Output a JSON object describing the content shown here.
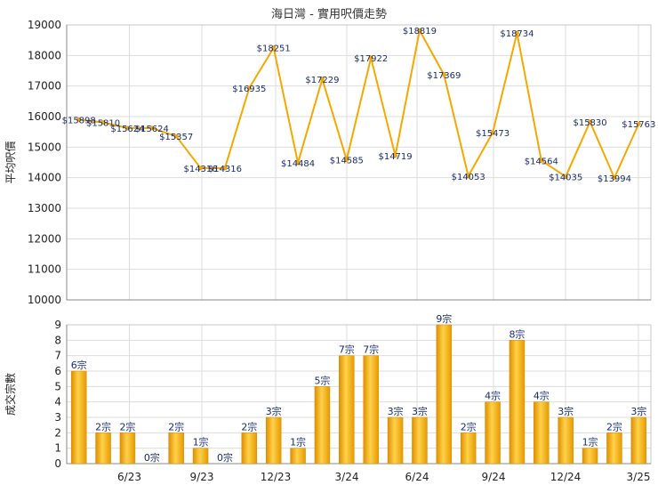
{
  "chart_data": [
    {
      "type": "line",
      "title": "海日灣 - 實用呎價走勢",
      "ylabel": "平均呎價",
      "ylim": [
        10000,
        19000
      ],
      "y_ticks": [
        10000,
        11000,
        12000,
        13000,
        14000,
        15000,
        16000,
        17000,
        18000,
        19000
      ],
      "x_tick_labels": [
        "6/23",
        "9/23",
        "12/23",
        "3/24",
        "6/24",
        "9/24",
        "12/24",
        "3/25"
      ],
      "grid": true,
      "color": "#f5a800",
      "series": [
        {
          "values": [
            15898,
            15810,
            15624,
            15624,
            15357,
            14316,
            14316,
            16935,
            18251,
            14484,
            17229,
            14585,
            17922,
            14719,
            18819,
            17369,
            14053,
            15473,
            18734,
            14564,
            14035,
            15830,
            13994,
            15763
          ],
          "labels": [
            "$15898",
            "$15810",
            "$15624",
            "$15624",
            "$15357",
            "$14316",
            "$14316",
            "$16935",
            "$18251",
            "$14484",
            "$17229",
            "$14585",
            "$17922",
            "$14719",
            "$18819",
            "$17369",
            "$14053",
            "$15473",
            "$18734",
            "$14564",
            "$14035",
            "$15830",
            "$13994",
            "$15763"
          ]
        }
      ]
    },
    {
      "type": "bar",
      "ylabel": "成交宗數",
      "ylim": [
        0,
        9
      ],
      "y_ticks": [
        0,
        1,
        2,
        3,
        4,
        5,
        6,
        7,
        8,
        9
      ],
      "x_tick_labels": [
        "6/23",
        "9/23",
        "12/23",
        "3/24",
        "6/24",
        "9/24",
        "12/24",
        "3/25"
      ],
      "grid": true,
      "color": "#f5b21e",
      "values": [
        6,
        2,
        2,
        0,
        2,
        1,
        0,
        2,
        3,
        1,
        5,
        7,
        7,
        3,
        3,
        9,
        2,
        4,
        8,
        4,
        3,
        1,
        2,
        3
      ],
      "labels": [
        "6宗",
        "2宗",
        "2宗",
        "0宗",
        "2宗",
        "1宗",
        "0宗",
        "2宗",
        "3宗",
        "1宗",
        "5宗",
        "7宗",
        "7宗",
        "3宗",
        "3宗",
        "9宗",
        "2宗",
        "4宗",
        "8宗",
        "4宗",
        "3宗",
        "1宗",
        "2宗",
        "3宗"
      ]
    }
  ]
}
